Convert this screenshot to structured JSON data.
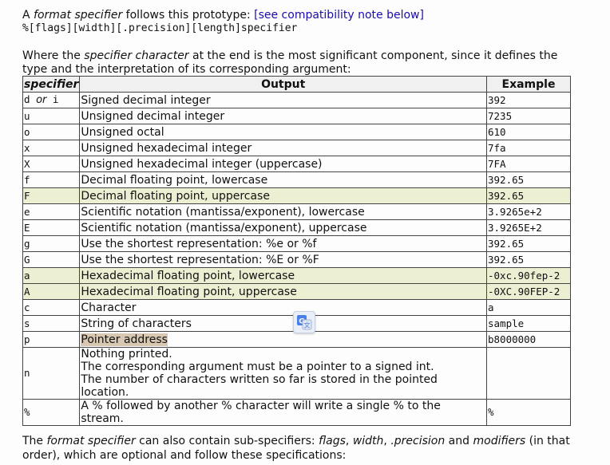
{
  "intro": {
    "p1": "A ",
    "em1": "format specifier",
    "p2": " follows this prototype: ",
    "link": "[see compatibility note below]"
  },
  "prototype": "%[flags][width][.precision][length]specifier",
  "where": {
    "p1": "Where the ",
    "em1": "specifier character",
    "p2": " at the end is the most significant component, since it defines the type and the interpretation of its corresponding argument:"
  },
  "table": {
    "headers": [
      "specifier",
      "Output",
      "Example"
    ],
    "rows": [
      {
        "spec": "d or i",
        "output": "Signed decimal integer",
        "example": "392"
      },
      {
        "spec": "u",
        "output": "Unsigned decimal integer",
        "example": "7235"
      },
      {
        "spec": "o",
        "output": "Unsigned octal",
        "example": "610"
      },
      {
        "spec": "x",
        "output": "Unsigned hexadecimal integer",
        "example": "7fa"
      },
      {
        "spec": "X",
        "output": "Unsigned hexadecimal integer (uppercase)",
        "example": "7FA"
      },
      {
        "spec": "f",
        "output": "Decimal floating point, lowercase",
        "example": "392.65"
      },
      {
        "spec": "F",
        "output": "Decimal floating point, uppercase",
        "example": "392.65"
      },
      {
        "spec": "e",
        "output": "Scientific notation (mantissa/exponent), lowercase",
        "example": "3.9265e+2"
      },
      {
        "spec": "E",
        "output": "Scientific notation (mantissa/exponent), uppercase",
        "example": "3.9265E+2"
      },
      {
        "spec": "g",
        "output": "Use the shortest representation: %e or %f",
        "example": "392.65"
      },
      {
        "spec": "G",
        "output": "Use the shortest representation: %E or %F",
        "example": "392.65"
      },
      {
        "spec": "a",
        "output": "Hexadecimal floating point, lowercase",
        "example": "-0xc.90fep-2"
      },
      {
        "spec": "A",
        "output": "Hexadecimal floating point, uppercase",
        "example": "-0XC.90FEP-2"
      },
      {
        "spec": "c",
        "output": "Character",
        "example": "a"
      },
      {
        "spec": "s",
        "output": "String of characters",
        "example": "sample"
      },
      {
        "spec": "p",
        "output": "Pointer address",
        "example": "b8000000"
      },
      {
        "spec": "n",
        "output_lines": [
          "Nothing printed.",
          "The corresponding argument must be a pointer to a signed int.",
          "The number of characters written so far is stored in the pointed location."
        ],
        "example": ""
      },
      {
        "spec": "%",
        "output": "A % followed by another % character will write a single % to the stream.",
        "example": "%"
      }
    ]
  },
  "outro": {
    "p1": "The ",
    "em1": "format specifier",
    "p2": " can also contain sub-specifiers: ",
    "em2": "flags",
    "p3": ", ",
    "em3": "width",
    "p4": ", ",
    "em4": ".precision",
    "p5": " and ",
    "em5": "modifiers",
    "p6": " (in that order), which are optional and follow these specifications:"
  },
  "colors": {
    "highlight_row": "#ecefd2",
    "selection": "#d8c7b1",
    "link": "#1a0dab"
  },
  "icons": {
    "translate": "google-translate-icon"
  }
}
